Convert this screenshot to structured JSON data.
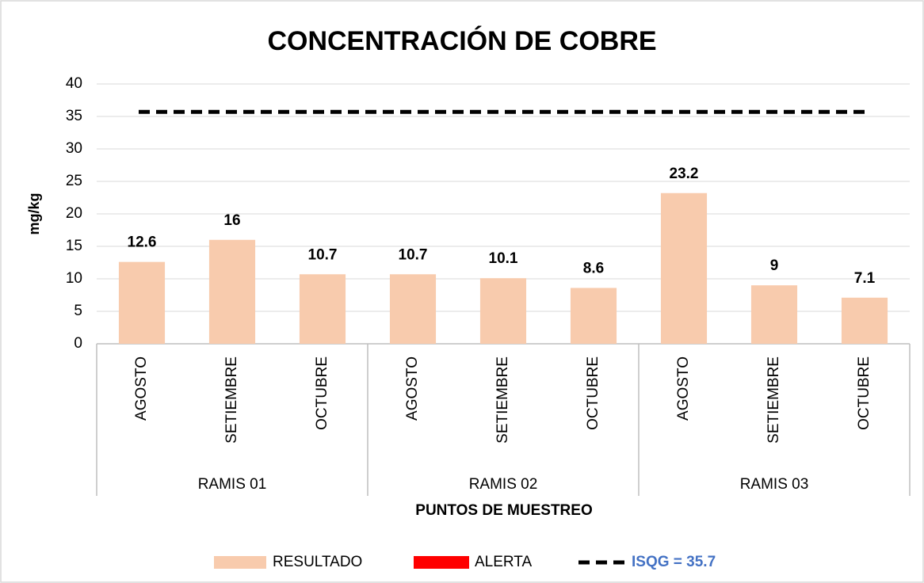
{
  "chart_data": {
    "type": "bar",
    "title": "CONCENTRACIÓN DE COBRE",
    "x_label": "PUNTOS DE MUESTREO",
    "y_label": "mg/kg",
    "categories": [
      "AGOSTO",
      "SETIEMBRE",
      "OCTUBRE",
      "AGOSTO",
      "SETIEMBRE",
      "OCTUBRE",
      "AGOSTO",
      "SETIEMBRE",
      "OCTUBRE"
    ],
    "groups": [
      "RAMIS 01",
      "RAMIS 02",
      "RAMIS 03"
    ],
    "series": [
      {
        "name": "RESULTADO",
        "color": "#f8cbad",
        "values": [
          12.6,
          16,
          10.7,
          10.7,
          10.1,
          8.6,
          23.2,
          9,
          7.1
        ]
      },
      {
        "name": "ALERTA",
        "color": "#ff0000",
        "values": [
          null,
          null,
          null,
          null,
          null,
          null,
          null,
          null,
          null
        ]
      }
    ],
    "reference_line": {
      "label": "ISQG = 35.7",
      "value": 35.7,
      "color": "#000000",
      "label_color": "#4472c4"
    },
    "ylim": [
      0,
      40
    ],
    "yticks": [
      0,
      5,
      10,
      15,
      20,
      25,
      30,
      35,
      40
    ],
    "grid": true,
    "legend": "bottom"
  }
}
